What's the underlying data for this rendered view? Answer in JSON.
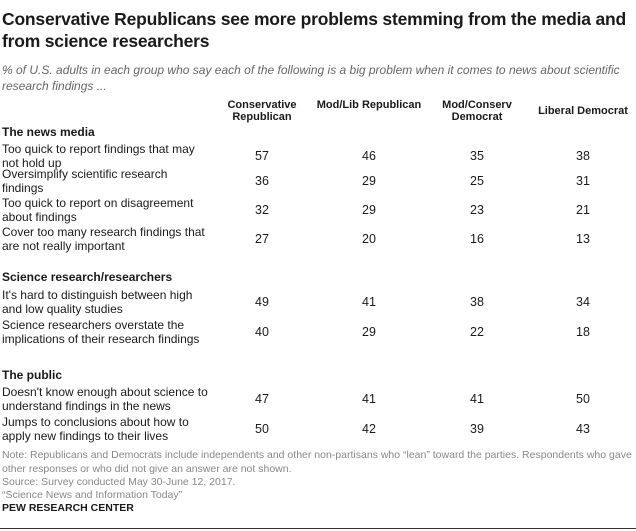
{
  "title": "Conservative Republicans see more problems stemming from the media and from science researchers",
  "subtitle": "% of U.S. adults in each group who say each of the following is a big problem when it comes to news about scientific research findings ...",
  "chart_data": {
    "type": "table",
    "columns": [
      "Conservative Republican",
      "Mod/Lib Republican",
      "Mod/Conserv Democrat",
      "Liberal Democrat"
    ],
    "sections": [
      {
        "name": "The news media",
        "rows": [
          {
            "label": "Too quick to report findings that may not hold up",
            "values": [
              57,
              46,
              35,
              38
            ]
          },
          {
            "label": "Oversimplify scientific research findings",
            "values": [
              36,
              29,
              25,
              31
            ]
          },
          {
            "label": "Too quick to report on disagreement about findings",
            "values": [
              32,
              29,
              23,
              21
            ]
          },
          {
            "label": "Cover too many research findings that are not really important",
            "values": [
              27,
              20,
              16,
              13
            ]
          }
        ]
      },
      {
        "name": "Science research/researchers",
        "rows": [
          {
            "label": "It's hard to distinguish between high and low quality studies",
            "values": [
              49,
              41,
              38,
              34
            ]
          },
          {
            "label": "Science researchers overstate the implications of their research findings",
            "values": [
              40,
              29,
              22,
              18
            ]
          }
        ]
      },
      {
        "name": "The public",
        "rows": [
          {
            "label": "Doesn't know enough about science to understand findings in the news",
            "values": [
              47,
              41,
              41,
              50
            ]
          },
          {
            "label": "Jumps to conclusions about how to apply new findings to their lives",
            "values": [
              50,
              42,
              39,
              43
            ]
          }
        ]
      }
    ]
  },
  "notes": {
    "note": "Note: Republicans and Democrats include independents and other non-partisans who “lean” toward the parties. Respondents who gave other responses or who did not give an answer are not shown.",
    "source": "Source: Survey conducted May 30-June 12, 2017.",
    "report": "“Science News and Information Today”"
  },
  "footer": "PEW RESEARCH CENTER"
}
